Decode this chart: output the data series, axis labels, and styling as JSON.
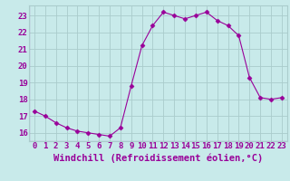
{
  "x": [
    0,
    1,
    2,
    3,
    4,
    5,
    6,
    7,
    8,
    9,
    10,
    11,
    12,
    13,
    14,
    15,
    16,
    17,
    18,
    19,
    20,
    21,
    22,
    23
  ],
  "y": [
    17.3,
    17.0,
    16.6,
    16.3,
    16.1,
    16.0,
    15.9,
    15.8,
    16.3,
    18.8,
    21.2,
    22.4,
    23.2,
    23.0,
    22.8,
    23.0,
    23.2,
    22.7,
    22.4,
    21.8,
    19.3,
    18.1,
    18.0,
    18.1
  ],
  "line_color": "#990099",
  "marker": "D",
  "marker_size": 2.5,
  "bg_color": "#c8eaea",
  "grid_color": "#aacccc",
  "xlabel": "Windchill (Refroidissement éolien,°C)",
  "xlabel_color": "#990099",
  "tick_color": "#990099",
  "ylim": [
    15.5,
    23.6
  ],
  "yticks": [
    16,
    17,
    18,
    19,
    20,
    21,
    22,
    23
  ],
  "xlim": [
    -0.5,
    23.5
  ],
  "xticks": [
    0,
    1,
    2,
    3,
    4,
    5,
    6,
    7,
    8,
    9,
    10,
    11,
    12,
    13,
    14,
    15,
    16,
    17,
    18,
    19,
    20,
    21,
    22,
    23
  ],
  "tick_fontsize": 6.5,
  "xlabel_fontsize": 7.5
}
